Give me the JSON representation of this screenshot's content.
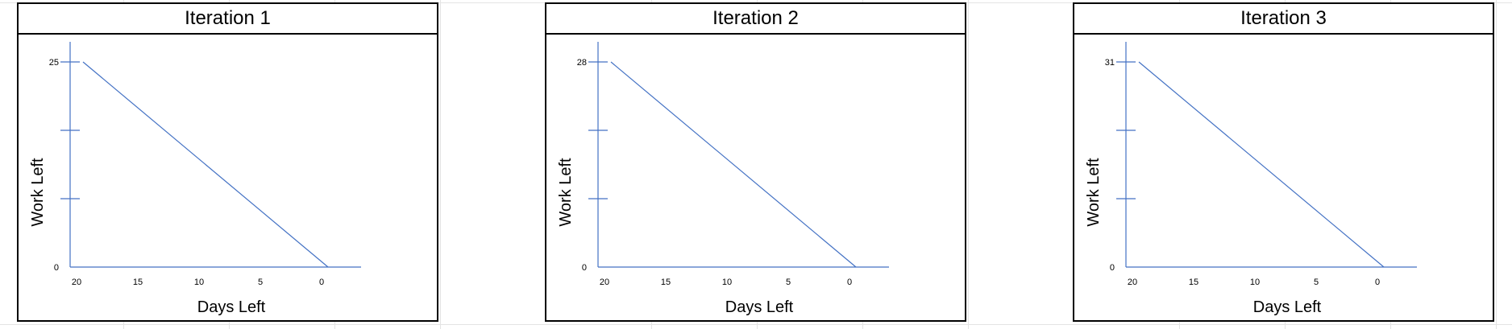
{
  "colors": {
    "line": "#4472c4",
    "axis": "#4472c4",
    "border": "#000000",
    "grid": "#e4e4e4"
  },
  "chart_data": [
    {
      "type": "line",
      "title": "Iteration 1",
      "xlabel": "Days Left",
      "ylabel": "Work Left",
      "x_ticks": [
        "20",
        "15",
        "10",
        "5",
        "0"
      ],
      "y_ticks": [
        "0",
        "25"
      ],
      "xlim": [
        20,
        0
      ],
      "ylim": [
        0,
        25
      ],
      "series": [
        {
          "x": [
            20,
            0
          ],
          "y": [
            25,
            0
          ]
        }
      ]
    },
    {
      "type": "line",
      "title": "Iteration 2",
      "xlabel": "Days Left",
      "ylabel": "Work Left",
      "x_ticks": [
        "20",
        "15",
        "10",
        "5",
        "0"
      ],
      "y_ticks": [
        "0",
        "28"
      ],
      "xlim": [
        20,
        0
      ],
      "ylim": [
        0,
        28
      ],
      "series": [
        {
          "x": [
            20,
            0
          ],
          "y": [
            28,
            0
          ]
        }
      ]
    },
    {
      "type": "line",
      "title": "Iteration 3",
      "xlabel": "Days Left",
      "ylabel": "Work Left",
      "x_ticks": [
        "20",
        "15",
        "10",
        "5",
        "0"
      ],
      "y_ticks": [
        "0",
        "31"
      ],
      "xlim": [
        20,
        0
      ],
      "ylim": [
        0,
        31
      ],
      "series": [
        {
          "x": [
            20,
            0
          ],
          "y": [
            31,
            0
          ]
        }
      ]
    }
  ]
}
